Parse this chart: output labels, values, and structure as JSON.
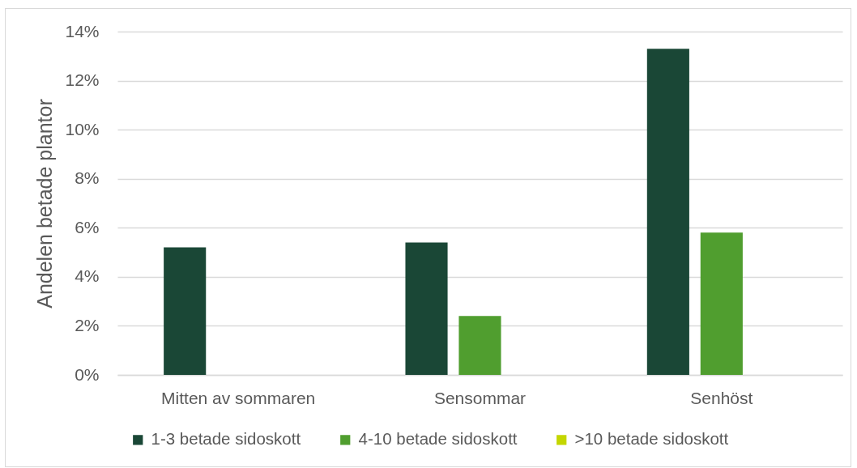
{
  "chart_data": {
    "type": "bar",
    "ylabel": "Andelen betade plantor",
    "categories": [
      "Mitten av sommaren",
      "Sensommar",
      "Senhöst"
    ],
    "series": [
      {
        "name": "1-3 betade sidoskott",
        "color": "#1a4736",
        "values": [
          5.2,
          5.4,
          13.3
        ]
      },
      {
        "name": "4-10 betade sidoskott",
        "color": "#509e2f",
        "values": [
          null,
          2.4,
          5.8
        ]
      },
      {
        "name": ">10 betade sidoskott",
        "color": "#c4d600",
        "values": [
          null,
          null,
          null
        ]
      }
    ],
    "ylim": [
      0,
      14
    ],
    "yticks": [
      {
        "value": 0,
        "label": "0%"
      },
      {
        "value": 2,
        "label": "2%"
      },
      {
        "value": 4,
        "label": "4%"
      },
      {
        "value": 6,
        "label": "6%"
      },
      {
        "value": 8,
        "label": "8%"
      },
      {
        "value": 10,
        "label": "10%"
      },
      {
        "value": 12,
        "label": "12%"
      },
      {
        "value": 14,
        "label": "14%"
      }
    ],
    "grid": "y",
    "legend": "bottom"
  }
}
